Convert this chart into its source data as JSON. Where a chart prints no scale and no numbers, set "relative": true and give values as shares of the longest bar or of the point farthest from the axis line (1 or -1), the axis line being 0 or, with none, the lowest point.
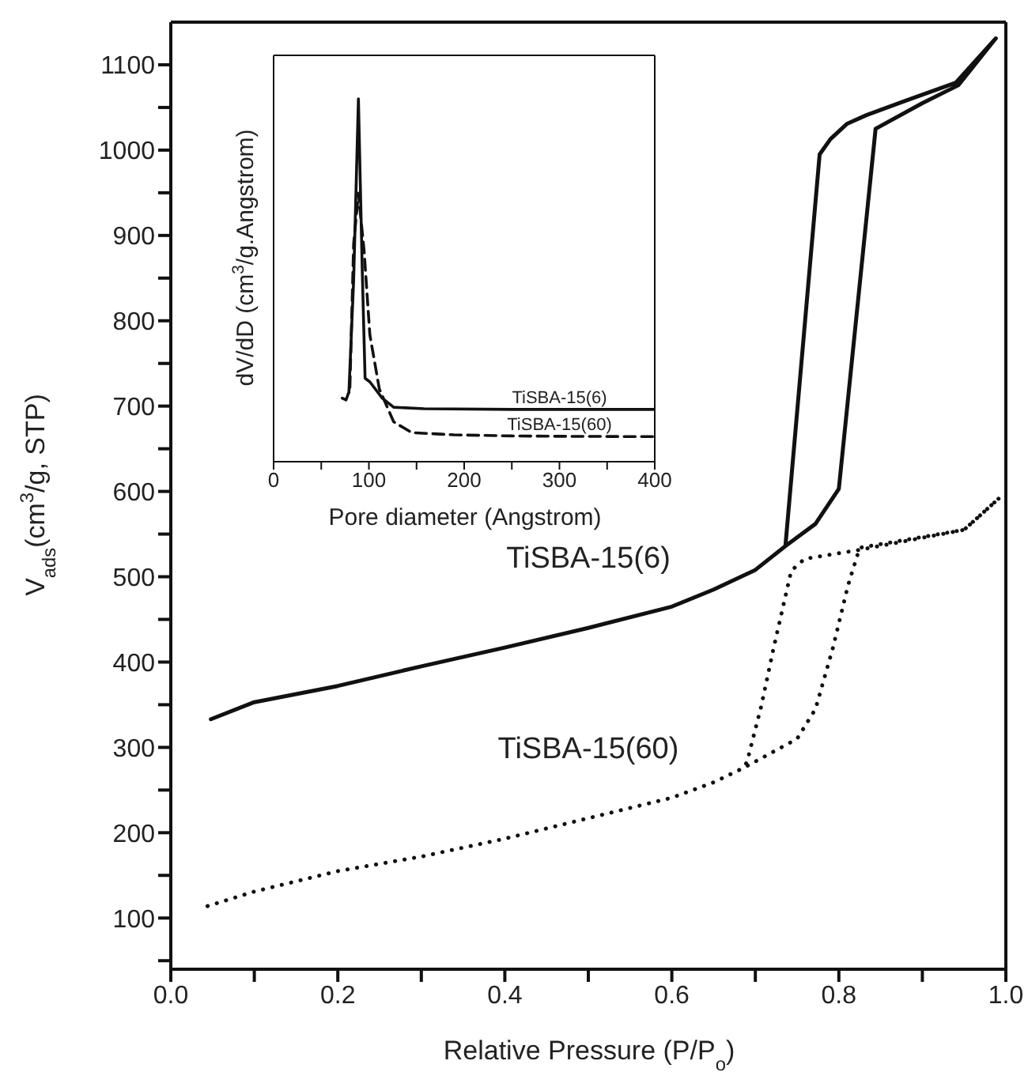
{
  "chart_data": [
    {
      "type": "line",
      "xlabel": "Relative Pressure (P/P$_{o}$)",
      "ylabel": "V$_{ads}$(cm$^{3}$/g, STP)",
      "xlim": [
        0,
        1
      ],
      "ylim": [
        40,
        1150
      ],
      "xticks": [
        {
          "value": 0,
          "label": "0.0"
        },
        {
          "value": 0.1,
          "label": null
        },
        {
          "value": 0.2,
          "label": "0.2"
        },
        {
          "value": 0.3,
          "label": null
        },
        {
          "value": 0.4,
          "label": "0.4"
        },
        {
          "value": 0.5,
          "label": null
        },
        {
          "value": 0.6,
          "label": "0.6"
        },
        {
          "value": 0.7,
          "label": null
        },
        {
          "value": 0.8,
          "label": "0.8"
        },
        {
          "value": 0.9,
          "label": null
        },
        {
          "value": 1,
          "label": "1.0"
        }
      ],
      "yticks": [
        {
          "value": 50,
          "label": null
        },
        100,
        {
          "value": 150,
          "label": null
        },
        200,
        {
          "value": 250,
          "label": null
        },
        300,
        {
          "value": 350,
          "label": null
        },
        400,
        {
          "value": 450,
          "label": null
        },
        500,
        {
          "value": 550,
          "label": null
        },
        600,
        {
          "value": 650,
          "label": null
        },
        700,
        {
          "value": 750,
          "label": null
        },
        800,
        {
          "value": 850,
          "label": null
        },
        900,
        {
          "value": 950,
          "label": null
        },
        1000,
        {
          "value": 1050,
          "label": null
        },
        1100
      ],
      "marker": "none",
      "series": [
        {
          "name": "TiSBA-15(6)",
          "color": "#111111",
          "line_style": "solid",
          "x": [
            0.048,
            0.1,
            0.2,
            0.3,
            0.4,
            0.5,
            0.6,
            0.65,
            0.7,
            0.736,
            0.772,
            0.8,
            0.815,
            0.844,
            0.9,
            0.943,
            0.988,
            0.94,
            0.88,
            0.833,
            0.81,
            0.79,
            0.777,
            0.736,
            0.7
          ],
          "values": [
            333,
            353,
            372,
            395,
            417,
            440,
            465,
            485,
            508,
            536,
            562,
            603,
            747,
            1025,
            1055,
            1076,
            1131,
            1079,
            1058,
            1041,
            1031,
            1013,
            995,
            536,
            508
          ]
        },
        {
          "name": "TiSBA-15(60)",
          "color": "#111111",
          "line_style": "dotted",
          "x": [
            0.044,
            0.1,
            0.2,
            0.3,
            0.4,
            0.5,
            0.6,
            0.65,
            0.686,
            0.75,
            0.772,
            0.793,
            0.811,
            0.825,
            0.95,
            0.993,
            0.95,
            0.822,
            0.759,
            0.743,
            0.722,
            0.707,
            0.69,
            0.686
          ],
          "values": [
            114,
            131,
            155,
            172,
            193,
            217,
            241,
            259,
            276,
            310,
            345,
            417,
            490,
            534,
            555,
            593,
            555,
            531,
            521,
            507,
            417,
            348,
            283,
            276
          ]
        }
      ]
    },
    {
      "type": "line",
      "xlabel": "Pore diameter (Angstrom)",
      "ylabel": "dV/dD (cm$^{3}$/g.Angstrom)",
      "relative": true,
      "xlim": [
        0,
        400
      ],
      "xticks": [
        0,
        {
          "value": 50,
          "label": null
        },
        100,
        {
          "value": 150,
          "label": null
        },
        200,
        {
          "value": 250,
          "label": null
        },
        300,
        {
          "value": 350,
          "label": null
        },
        400
      ],
      "tick_labels": "x",
      "marker": "none",
      "series": [
        {
          "name": "TiSBA-15(6)",
          "color": "#111111",
          "line_style": "solid",
          "x": [
            79,
            84,
            89,
            93,
            96,
            101,
            114,
            126,
            158,
            250,
            300,
            400
          ],
          "values": [
            0.19,
            0.5,
            1.0,
            0.53,
            0.23,
            0.22,
            0.175,
            0.15,
            0.146,
            0.144,
            0.144,
            0.144
          ]
        },
        {
          "name": "TiSBA-15(60)",
          "color": "#111111",
          "line_style": "dashed",
          "x": [
            72,
            76,
            80,
            84,
            89,
            95,
            101,
            111,
            126,
            145,
            189,
            250,
            300,
            400
          ],
          "values": [
            0.175,
            0.17,
            0.2,
            0.6,
            0.74,
            0.58,
            0.35,
            0.2,
            0.11,
            0.08,
            0.074,
            0.071,
            0.07,
            0.069
          ]
        }
      ]
    }
  ]
}
